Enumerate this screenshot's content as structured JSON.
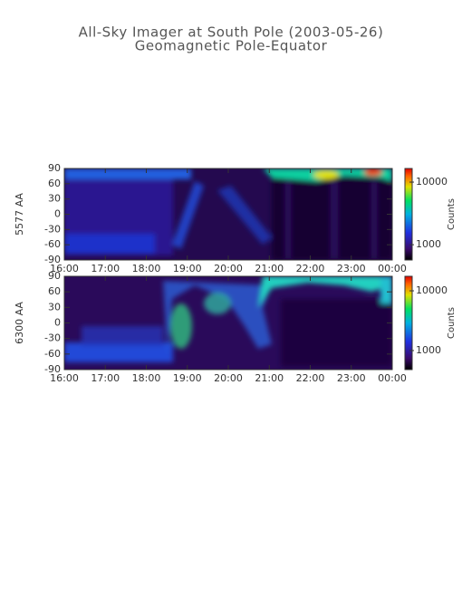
{
  "title": "All-Sky Imager at South Pole (2003-05-26)",
  "subtitle": "Geomagnetic Pole-Equator",
  "chart_data": [
    {
      "type": "heatmap",
      "ylabel": "5577 AA",
      "xlim": [
        16,
        24
      ],
      "xticks": [
        {
          "value": 16,
          "label": "16:00"
        },
        {
          "value": 17,
          "label": "17:00"
        },
        {
          "value": 18,
          "label": "18:00"
        },
        {
          "value": 19,
          "label": "19:00"
        },
        {
          "value": 20,
          "label": "20:00"
        },
        {
          "value": 21,
          "label": "21:00"
        },
        {
          "value": 22,
          "label": "22:00"
        },
        {
          "value": 23,
          "label": "23:00"
        },
        {
          "value": 24,
          "label": "00:00"
        }
      ],
      "ylim": [
        -90,
        90
      ],
      "yticks": [
        -90,
        -60,
        -30,
        0,
        30,
        60,
        90
      ],
      "colorbar": {
        "label": "Counts",
        "scale": "log",
        "lim": [
          570,
          16500
        ],
        "ticks": [
          1000,
          10000
        ]
      }
    },
    {
      "type": "heatmap",
      "ylabel": "6300 AA",
      "xlim": [
        16,
        24
      ],
      "xticks": [
        {
          "value": 16,
          "label": "16:00"
        },
        {
          "value": 17,
          "label": "17:00"
        },
        {
          "value": 18,
          "label": "18:00"
        },
        {
          "value": 19,
          "label": "19:00"
        },
        {
          "value": 20,
          "label": "20:00"
        },
        {
          "value": 21,
          "label": "21:00"
        },
        {
          "value": 22,
          "label": "22:00"
        },
        {
          "value": 23,
          "label": "23:00"
        },
        {
          "value": 24,
          "label": "00:00"
        }
      ],
      "ylim": [
        -90,
        90
      ],
      "yticks": [
        -90,
        -60,
        -30,
        0,
        30,
        60,
        90
      ],
      "colorbar": {
        "label": "Counts",
        "scale": "log",
        "lim": [
          480,
          17500
        ],
        "ticks": [
          1000,
          10000
        ]
      }
    }
  ]
}
